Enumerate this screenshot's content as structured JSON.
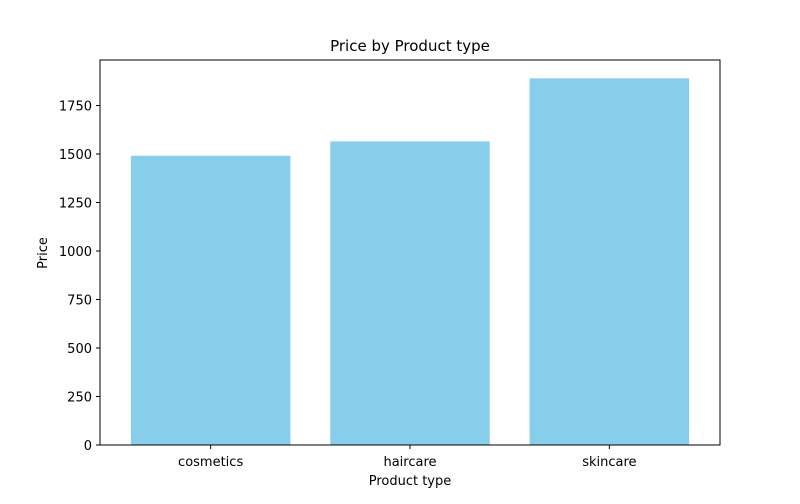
{
  "chart_data": {
    "type": "bar",
    "title": "Price by Product type",
    "xlabel": "Product type",
    "ylabel": "Price",
    "categories": [
      "cosmetics",
      "haircare",
      "skincare"
    ],
    "values": [
      1491,
      1565,
      1890
    ],
    "ylim": [
      0,
      1890
    ],
    "yticks": [
      0,
      250,
      500,
      750,
      1000,
      1250,
      1500,
      1750
    ],
    "bar_color": "#87ceeb",
    "grid": false,
    "legend": "none"
  }
}
